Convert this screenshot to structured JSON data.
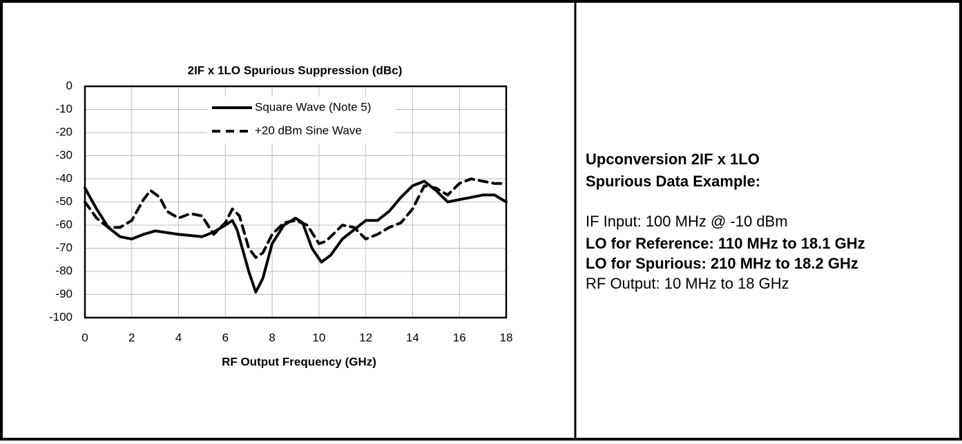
{
  "chart_data": {
    "type": "line",
    "title": "2IF x 1LO Spurious Suppression (dBc)",
    "xlabel": "RF Output Frequency (GHz)",
    "xlim": [
      0,
      18
    ],
    "xticks": [
      0,
      2,
      4,
      6,
      8,
      10,
      12,
      14,
      16,
      18
    ],
    "ylim": [
      -100,
      0
    ],
    "yticks": [
      0,
      -10,
      -20,
      -30,
      -40,
      -50,
      -60,
      -70,
      -80,
      -90,
      -100
    ],
    "grid": true,
    "legend": "top",
    "series": [
      {
        "name": "Square Wave (Note 5)",
        "color": "#000000",
        "dash": false,
        "x": [
          0,
          0.5,
          1,
          1.5,
          2,
          2.5,
          3,
          4,
          5,
          5.5,
          6,
          6.3,
          6.5,
          7,
          7.3,
          7.6,
          8,
          8.5,
          9,
          9.3,
          9.7,
          10.1,
          10.5,
          11,
          12,
          12.5,
          13,
          13.5,
          14,
          14.5,
          15,
          15.5,
          16,
          16.5,
          17,
          17.5,
          18
        ],
        "values": [
          -44,
          -53,
          -61,
          -65,
          -66,
          -64,
          -62.5,
          -64,
          -65,
          -63,
          -60,
          -58,
          -62,
          -80,
          -89,
          -83,
          -68,
          -60,
          -57,
          -59,
          -70,
          -76,
          -73,
          -66,
          -58,
          -58,
          -54,
          -48,
          -43,
          -41,
          -45,
          -50,
          -49,
          -48,
          -47,
          -47,
          -50
        ]
      },
      {
        "name": "+20 dBm Sine Wave",
        "color": "#000000",
        "dash": true,
        "x": [
          0,
          0.5,
          1,
          1.5,
          2,
          2.5,
          2.8,
          3.2,
          3.5,
          4,
          4.5,
          5,
          5.5,
          6,
          6.3,
          6.6,
          7,
          7.3,
          7.6,
          8,
          8.5,
          9,
          9.5,
          10,
          10.3,
          11,
          11.5,
          12,
          12.5,
          13,
          13.5,
          14,
          14.5,
          15,
          15.5,
          16,
          16.5,
          17,
          17.5,
          18
        ],
        "values": [
          -50,
          -57,
          -61,
          -61,
          -58,
          -49,
          -45,
          -48,
          -54,
          -57,
          -55,
          -56,
          -64,
          -59,
          -53,
          -56,
          -70,
          -74,
          -72,
          -64,
          -59,
          -58,
          -60,
          -68,
          -67,
          -60,
          -61,
          -66,
          -64,
          -61,
          -59,
          -53,
          -43,
          -44,
          -47,
          -42,
          -40,
          -41,
          -42,
          -42
        ]
      }
    ]
  },
  "description": {
    "lines": [
      {
        "text": "Upconversion 2IF x 1LO",
        "bold": true
      },
      {
        "text": "Spurious Data Example:",
        "bold": true
      },
      {
        "text": "IF Input: 100 MHz @ -10 dBm",
        "bold": false
      },
      {
        "text": "LO for Reference: 110 MHz to 18.1 GHz",
        "bold": true
      },
      {
        "text": "LO for Spurious: 210 MHz to 18.2 GHz",
        "bold": true
      },
      {
        "text": "RF Output: 10 MHz to 18 GHz",
        "bold": false
      }
    ]
  }
}
